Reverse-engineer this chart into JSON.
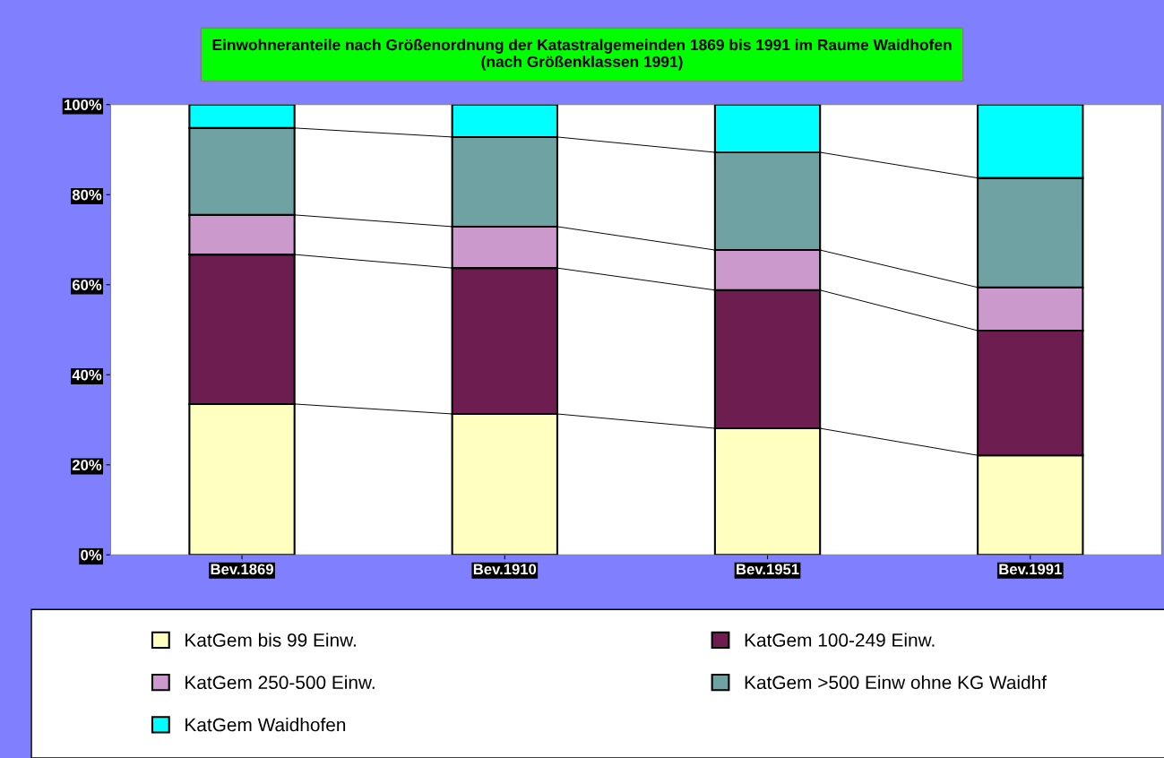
{
  "chart_data": {
    "type": "bar",
    "stacked": true,
    "title": "Einwohneranteile nach Größenordnung der Katastralgemeinden 1869 bis 1991 im Raume Waidhofen\n(nach Größenklassen 1991)",
    "categories": [
      "Bev.1869",
      "Bev.1910",
      "Bev.1951",
      "Bev.1991"
    ],
    "series": [
      {
        "name": "KatGem bis 99 Einw.",
        "color": "#ffffc0",
        "values": [
          33.5,
          31.3,
          28.1,
          22.1
        ]
      },
      {
        "name": "KatGem 100-249 Einw.",
        "color": "#6e1d50",
        "values": [
          33.2,
          32.4,
          30.7,
          27.7
        ]
      },
      {
        "name": "KatGem 250-500 Einw.",
        "color": "#cc99cc",
        "values": [
          8.8,
          9.2,
          8.9,
          9.6
        ]
      },
      {
        "name": "KatGem >500 Einw ohne KG Waidhf",
        "color": "#6fa3a3",
        "values": [
          19.3,
          19.9,
          21.7,
          24.3
        ]
      },
      {
        "name": "KatGem Waidhofen",
        "color": "#00ffff",
        "values": [
          5.2,
          7.2,
          10.6,
          16.3
        ]
      }
    ],
    "ylim": [
      0,
      100
    ],
    "yticks": [
      {
        "value": 0,
        "label": "0%"
      },
      {
        "value": 20,
        "label": "20%"
      },
      {
        "value": 40,
        "label": "40%"
      },
      {
        "value": 60,
        "label": "60%"
      },
      {
        "value": 80,
        "label": "80%"
      },
      {
        "value": 100,
        "label": "100%"
      }
    ],
    "grid": false,
    "legend": "bottom"
  }
}
